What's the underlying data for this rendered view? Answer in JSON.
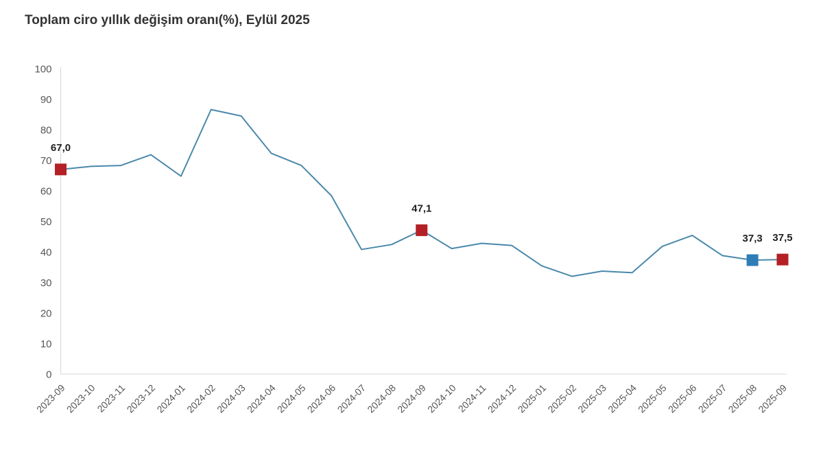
{
  "chart_data": {
    "type": "line",
    "title": "Toplam ciro yıllık değişim oranı(%), Eylül 2025",
    "xlabel": "",
    "ylabel": "",
    "ylim": [
      0,
      100
    ],
    "ytick_step": 10,
    "grid": false,
    "legend": "none",
    "line_color": "#4a88aa",
    "axis_color": "#d6d6d6",
    "tick_label_color": "#565656",
    "data_label_color": "#1f1f1f",
    "marker_color_red": "#b32025",
    "marker_color_blue": "#2f7db6",
    "x": [
      "2023-09",
      "2023-10",
      "2023-11",
      "2023-12",
      "2024-01",
      "2024-02",
      "2024-03",
      "2024-04",
      "2024-05",
      "2024-06",
      "2024-07",
      "2024-08",
      "2024-09",
      "2024-10",
      "2024-11",
      "2024-12",
      "2025-01",
      "2025-02",
      "2025-03",
      "2025-04",
      "2025-05",
      "2025-06",
      "2025-07",
      "2025-08",
      "2025-09"
    ],
    "values": [
      67.0,
      68.0,
      68.3,
      71.8,
      64.8,
      86.6,
      84.5,
      72.3,
      68.3,
      58.4,
      40.8,
      42.4,
      47.1,
      41.1,
      42.8,
      42.1,
      35.4,
      32.0,
      33.7,
      33.2,
      41.8,
      45.4,
      38.8,
      37.3,
      37.5
    ],
    "annotated_points": [
      {
        "x": "2023-09",
        "value": 67.0,
        "label": "67,0",
        "marker_color": "#b32025"
      },
      {
        "x": "2024-09",
        "value": 47.1,
        "label": "47,1",
        "marker_color": "#b32025"
      },
      {
        "x": "2025-08",
        "value": 37.3,
        "label": "37,3",
        "marker_color": "#2f7db6"
      },
      {
        "x": "2025-09",
        "value": 37.5,
        "label": "37,5",
        "marker_color": "#b32025"
      }
    ]
  }
}
